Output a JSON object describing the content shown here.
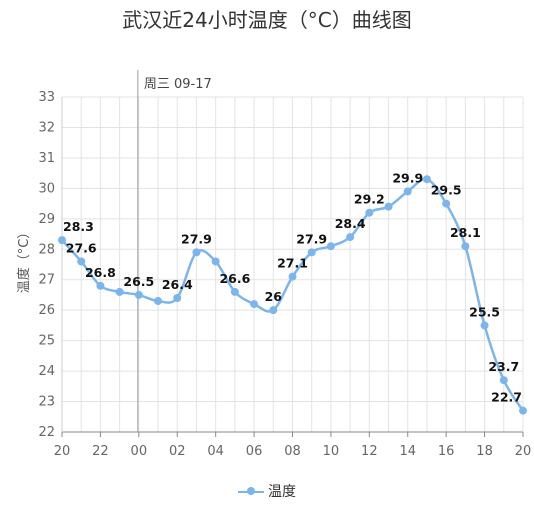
{
  "chart_data": {
    "type": "line",
    "title": "武汉近24小时温度（°C）曲线图",
    "ylabel": "温度（°C）",
    "xlabel": "",
    "day_marker": "周三 09-17",
    "ylim": [
      22,
      33
    ],
    "y_ticks": [
      22,
      23,
      24,
      25,
      26,
      27,
      28,
      29,
      30,
      31,
      32,
      33
    ],
    "x_ticks": [
      "20",
      "22",
      "00",
      "02",
      "04",
      "06",
      "08",
      "10",
      "12",
      "14",
      "16",
      "18",
      "20"
    ],
    "grid": true,
    "legend_position": "bottom",
    "series": [
      {
        "name": "温度",
        "color": "#7cb5ec",
        "values": [
          28.3,
          27.6,
          26.8,
          26.6,
          26.5,
          26.3,
          26.4,
          27.9,
          27.6,
          26.6,
          26.2,
          26.0,
          27.1,
          27.9,
          28.1,
          28.4,
          29.2,
          29.4,
          29.9,
          30.3,
          29.5,
          28.1,
          25.5,
          23.7,
          22.7
        ],
        "data_labels": [
          "28.3",
          "27.6",
          "26.8",
          "",
          "26.5",
          "",
          "26.4",
          "27.9",
          "",
          "26.6",
          "",
          "26",
          "27.1",
          "27.9",
          "",
          "28.4",
          "29.2",
          "",
          "29.9",
          "",
          "29.5",
          "28.1",
          "25.5",
          "23.7",
          "22.7"
        ]
      }
    ]
  }
}
